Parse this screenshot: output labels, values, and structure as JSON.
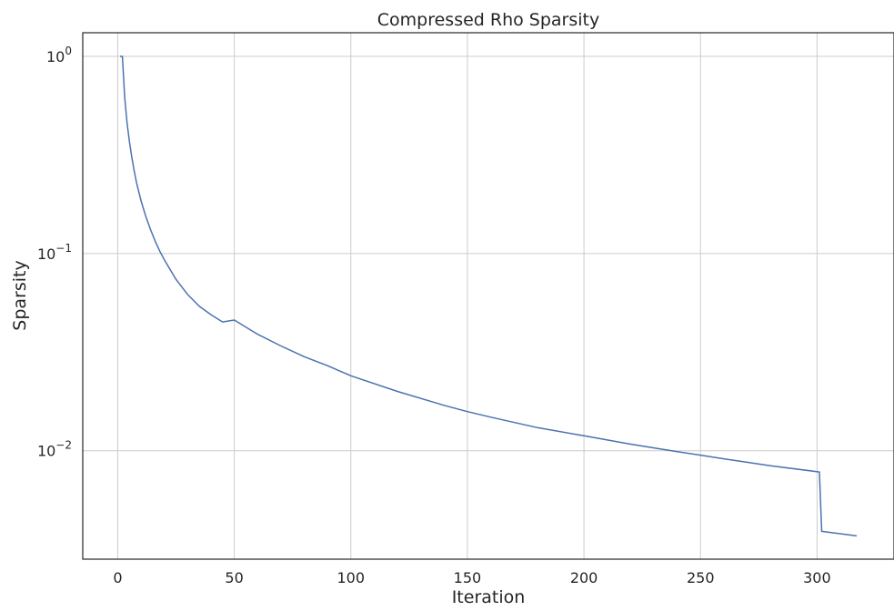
{
  "chart_data": {
    "type": "line",
    "title": "Compressed Rho Sparsity",
    "xlabel": "Iteration",
    "ylabel": "Sparsity",
    "xlim": [
      -15,
      333
    ],
    "ylim_log10": [
      -2.55,
      0.12
    ],
    "yscale": "log",
    "grid": true,
    "x_ticks": [
      0,
      50,
      100,
      150,
      200,
      250,
      300
    ],
    "y_ticks": [
      {
        "base": "10",
        "exp": "0",
        "value": 1
      },
      {
        "base": "10",
        "exp": "−1",
        "value": 0.1
      },
      {
        "base": "10",
        "exp": "−2",
        "value": 0.01
      }
    ],
    "series": [
      {
        "color": "#4c72b0",
        "points": [
          [
            1,
            1.0
          ],
          [
            2,
            1.0
          ],
          [
            3,
            0.62
          ],
          [
            4,
            0.46
          ],
          [
            5,
            0.37
          ],
          [
            6,
            0.31
          ],
          [
            7,
            0.265
          ],
          [
            8,
            0.23
          ],
          [
            10,
            0.185
          ],
          [
            12,
            0.155
          ],
          [
            14,
            0.133
          ],
          [
            16,
            0.116
          ],
          [
            18,
            0.103
          ],
          [
            20,
            0.093
          ],
          [
            25,
            0.074
          ],
          [
            30,
            0.062
          ],
          [
            35,
            0.054
          ],
          [
            40,
            0.049
          ],
          [
            45,
            0.045
          ],
          [
            50,
            0.046
          ],
          [
            60,
            0.039
          ],
          [
            70,
            0.034
          ],
          [
            80,
            0.03
          ],
          [
            90,
            0.027
          ],
          [
            100,
            0.024
          ],
          [
            120,
            0.02
          ],
          [
            140,
            0.017
          ],
          [
            150,
            0.0158
          ],
          [
            160,
            0.0148
          ],
          [
            180,
            0.0131
          ],
          [
            200,
            0.0119
          ],
          [
            220,
            0.0108
          ],
          [
            240,
            0.0099
          ],
          [
            250,
            0.0095
          ],
          [
            260,
            0.0091
          ],
          [
            280,
            0.0084
          ],
          [
            301,
            0.0078
          ],
          [
            302,
            0.0039
          ],
          [
            317,
            0.0037
          ]
        ]
      }
    ]
  }
}
